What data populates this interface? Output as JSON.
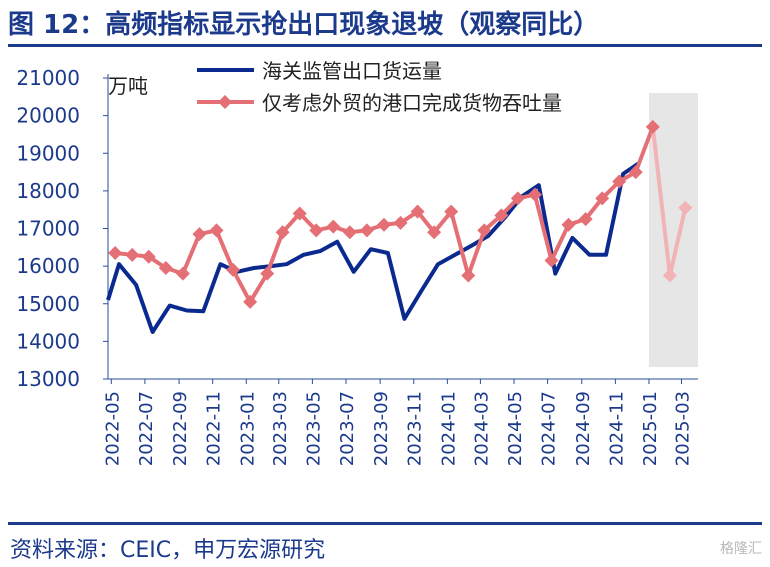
{
  "figure": {
    "title": "图 12：高频指标显示抢出口现象退坡（观察同比）",
    "source": "资料来源：CEIC，申万宏源研究",
    "watermark": "格隆汇"
  },
  "colors": {
    "title": "#1c3a8c",
    "customs": "#0b2a8f",
    "port": "#e46f74",
    "port_muted": "#f2b3b6",
    "shade": "#e6e6e6",
    "axis": "#2a4c9a"
  },
  "chart_data": {
    "type": "line",
    "ylabel": "万吨",
    "ylim": [
      13000,
      21000
    ],
    "y_ticks": [
      13000,
      14000,
      15000,
      16000,
      17000,
      18000,
      19000,
      20000,
      21000
    ],
    "x_ticks": [
      "2022-05",
      "2022-07",
      "2022-09",
      "2022-11",
      "2023-01",
      "2023-03",
      "2023-05",
      "2023-07",
      "2023-09",
      "2023-11",
      "2024-01",
      "2024-03",
      "2024-05",
      "2024-07",
      "2024-09",
      "2024-11",
      "2025-01",
      "2025-03"
    ],
    "shaded_range": [
      "2025-01",
      "2025-03"
    ],
    "legend_position": "top-center",
    "series": [
      {
        "name": "海关监管出口货运量",
        "type": "line",
        "points": [
          [
            "2022-04-25",
            15100
          ],
          [
            "2022-05-15",
            16050
          ],
          [
            "2022-06-15",
            15500
          ],
          [
            "2022-07-15",
            14250
          ],
          [
            "2022-08-15",
            14950
          ],
          [
            "2022-09-15",
            14820
          ],
          [
            "2022-10-15",
            14800
          ],
          [
            "2022-11-15",
            16050
          ],
          [
            "2022-12-15",
            15850
          ],
          [
            "2023-01-15",
            15950
          ],
          [
            "2023-02-15",
            16000
          ],
          [
            "2023-03-15",
            16050
          ],
          [
            "2023-04-15",
            16300
          ],
          [
            "2023-05-15",
            16400
          ],
          [
            "2023-06-15",
            16650
          ],
          [
            "2023-07-15",
            15850
          ],
          [
            "2023-08-15",
            16450
          ],
          [
            "2023-09-15",
            16350
          ],
          [
            "2023-10-15",
            14600
          ],
          [
            "2023-11-15",
            15350
          ],
          [
            "2023-12-15",
            16050
          ],
          [
            "2024-01-15",
            16300
          ],
          [
            "2024-02-15",
            16550
          ],
          [
            "2024-03-15",
            16800
          ],
          [
            "2024-04-15",
            17300
          ],
          [
            "2024-05-15",
            17850
          ],
          [
            "2024-06-15",
            18150
          ],
          [
            "2024-07-15",
            15800
          ],
          [
            "2024-08-15",
            16750
          ],
          [
            "2024-09-15",
            16300
          ],
          [
            "2024-10-15",
            16300
          ],
          [
            "2024-11-15",
            18450
          ],
          [
            "2024-12-15",
            18750
          ]
        ]
      },
      {
        "name": "仅考虑外贸的港口完成货物吞吐量",
        "type": "line-marker",
        "points": [
          [
            "2022-05-08",
            16350
          ],
          [
            "2022-06-08",
            16300
          ],
          [
            "2022-07-08",
            16250
          ],
          [
            "2022-08-08",
            15950
          ],
          [
            "2022-09-08",
            15800
          ],
          [
            "2022-10-08",
            16850
          ],
          [
            "2022-11-08",
            16950
          ],
          [
            "2022-12-08",
            15900
          ],
          [
            "2023-01-08",
            15050
          ],
          [
            "2023-02-08",
            15800
          ],
          [
            "2023-03-08",
            16900
          ],
          [
            "2023-04-08",
            17400
          ],
          [
            "2023-05-08",
            16950
          ],
          [
            "2023-06-08",
            17050
          ],
          [
            "2023-07-08",
            16900
          ],
          [
            "2023-08-08",
            16950
          ],
          [
            "2023-09-08",
            17100
          ],
          [
            "2023-10-08",
            17150
          ],
          [
            "2023-11-08",
            17450
          ],
          [
            "2023-12-08",
            16900
          ],
          [
            "2024-01-08",
            17450
          ],
          [
            "2024-02-08",
            15750
          ],
          [
            "2024-03-08",
            16950
          ],
          [
            "2024-04-08",
            17350
          ],
          [
            "2024-05-08",
            17800
          ],
          [
            "2024-06-08",
            17900
          ],
          [
            "2024-07-08",
            16150
          ],
          [
            "2024-08-08",
            17100
          ],
          [
            "2024-09-08",
            17250
          ],
          [
            "2024-10-08",
            17800
          ],
          [
            "2024-11-08",
            18250
          ],
          [
            "2024-12-08",
            18500
          ],
          [
            "2025-01-08",
            19700
          ],
          [
            "2025-02-08",
            15750
          ],
          [
            "2025-03-08",
            17550
          ]
        ],
        "muted_from": "2025-01-08"
      }
    ]
  }
}
